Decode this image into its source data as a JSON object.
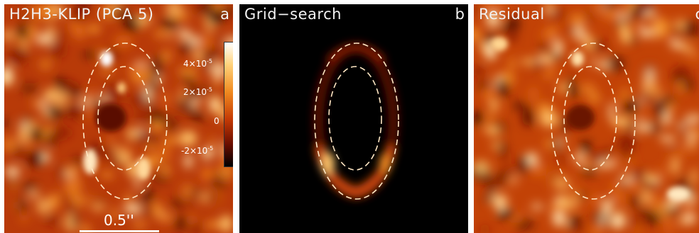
{
  "figure": {
    "panels": [
      {
        "id": "a",
        "title": "H2H3-KLIP (PCA 5)",
        "letter": "a"
      },
      {
        "id": "b",
        "title": "Grid−search",
        "letter": "b"
      },
      {
        "id": "c",
        "title": "Residual",
        "letter": "c"
      }
    ],
    "scale_bar": {
      "label": "0.5''"
    },
    "colorbar": {
      "ticks": [
        {
          "mantissa": "4×10",
          "exponent": "-5",
          "value": 4e-05
        },
        {
          "mantissa": "2×10",
          "exponent": "-5",
          "value": 2e-05
        },
        {
          "mantissa": "0",
          "exponent": "",
          "value": 0
        },
        {
          "mantissa": "-2×10",
          "exponent": "-5",
          "value": -2e-05
        }
      ],
      "range": [
        -3.5e-05,
        5.5e-05
      ],
      "colormap": [
        "#000000",
        "#6a0e00",
        "#c43a05",
        "#f08a20",
        "#ffd27a",
        "#ffffff"
      ]
    },
    "colors": {
      "background_a": "#b83a08",
      "background_b": "#000000",
      "background_c": "#c24206",
      "ellipse_outline": "#ffe7c4"
    }
  }
}
